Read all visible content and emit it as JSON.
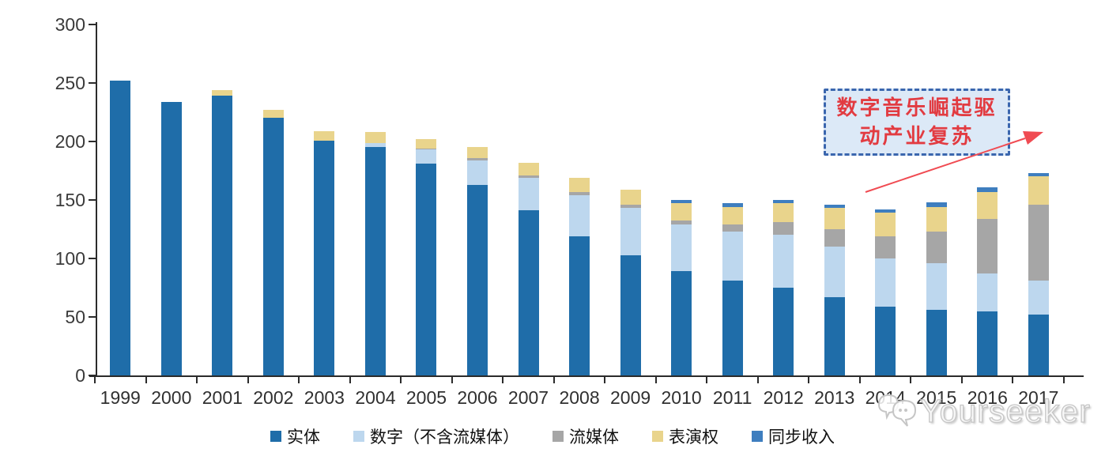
{
  "chart_data": {
    "type": "bar",
    "stacked": true,
    "title": "",
    "xlabel": "",
    "ylabel": "",
    "categories": [
      "1999",
      "2000",
      "2001",
      "2002",
      "2003",
      "2004",
      "2005",
      "2006",
      "2007",
      "2008",
      "2009",
      "2010",
      "2011",
      "2012",
      "2013",
      "2014",
      "2015",
      "2016",
      "2017"
    ],
    "series": [
      {
        "name": "实体",
        "color": "#1F6DA9",
        "values": [
          252,
          234,
          239,
          220,
          201,
          195,
          181,
          163,
          141,
          119,
          103,
          89,
          81,
          75,
          67,
          59,
          56,
          55,
          52
        ]
      },
      {
        "name": "数字（不含流媒体）",
        "color": "#BDD7EE",
        "values": [
          0,
          0,
          0,
          0,
          0,
          4,
          12,
          21,
          28,
          35,
          40,
          40,
          42,
          45,
          43,
          41,
          40,
          32,
          29
        ]
      },
      {
        "name": "流媒体",
        "color": "#A6A6A6",
        "values": [
          0,
          0,
          0,
          0,
          0,
          0,
          1,
          2,
          2,
          3,
          3,
          3.5,
          6,
          11,
          15,
          19,
          27,
          47,
          65
        ]
      },
      {
        "name": "表演权",
        "color": "#E9D48C",
        "values": [
          0,
          0,
          5,
          7,
          8,
          9,
          8,
          9,
          11,
          12,
          13,
          14.5,
          15,
          16,
          18,
          20,
          21,
          23,
          24
        ]
      },
      {
        "name": "同步收入",
        "color": "#3E7EBF",
        "values": [
          0,
          0,
          0,
          0,
          0,
          0,
          0,
          0,
          0,
          0,
          0,
          3,
          3,
          3,
          3,
          3,
          4,
          4,
          3
        ]
      }
    ],
    "ylim": [
      0,
      300
    ],
    "yticks": [
      0,
      50,
      100,
      150,
      200,
      250,
      300
    ],
    "grid": false,
    "legend_position": "bottom"
  },
  "annotation": {
    "line1": "数字音乐崛起驱",
    "line2": "动产业复苏",
    "text_color": "#E23B41",
    "border_color": "#3A66AE",
    "fill_color": "#DCE9F7",
    "arrow_color": "#F04B52"
  },
  "watermark": {
    "text": "Yourseeker",
    "icon": "chat-bubbles-icon"
  }
}
